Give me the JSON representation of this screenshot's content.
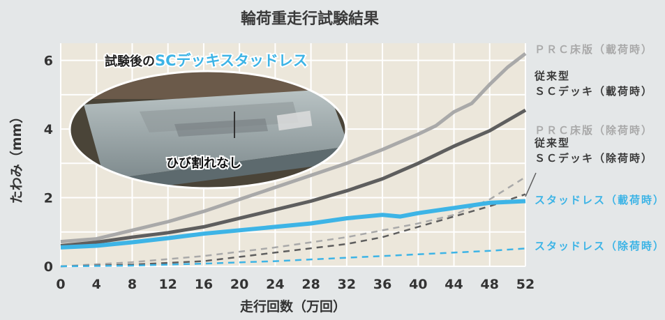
{
  "title": "輪荷重走行試験結果",
  "photo": {
    "caption_prefix": "試験後の",
    "caption_highlight": "SCデッキスタッドレス",
    "note": "ひび割れなし"
  },
  "colors": {
    "background": "#e4e7e8",
    "plot_bg": "#ece7db",
    "grid": "#ffffff",
    "prc": "#a9a9a9",
    "conventional": "#5e5e5e",
    "studless": "#3db4e6",
    "text": "#333333"
  },
  "chart_data": {
    "type": "line",
    "title": "輪荷重走行試験結果",
    "xlabel": "走行回数（万回）",
    "ylabel": "たわみ（mm）",
    "xlim": [
      0,
      52
    ],
    "ylim": [
      0,
      6.5
    ],
    "xticks": [
      "0",
      "4",
      "8",
      "12",
      "16",
      "20",
      "24",
      "28",
      "32",
      "36",
      "40",
      "44",
      "48",
      "52"
    ],
    "yticks": [
      "0",
      "2",
      "4",
      "6"
    ],
    "grid": true,
    "legend_placement": "right",
    "series": [
      {
        "name": "ＰＲＣ床版（載荷時）",
        "style": "solid",
        "color": "#a9a9a9",
        "x": [
          0,
          4,
          8,
          12,
          16,
          20,
          24,
          28,
          32,
          36,
          40,
          42,
          44,
          46,
          48,
          50,
          52
        ],
        "y": [
          0.72,
          0.8,
          1.05,
          1.3,
          1.6,
          1.95,
          2.3,
          2.65,
          3.0,
          3.4,
          3.85,
          4.1,
          4.5,
          4.75,
          5.3,
          5.8,
          6.2
        ]
      },
      {
        "name": "従来型 ＳＣデッキ（載荷時）",
        "style": "solid",
        "color": "#5e5e5e",
        "x": [
          0,
          4,
          8,
          12,
          16,
          20,
          24,
          28,
          32,
          36,
          40,
          44,
          48,
          52
        ],
        "y": [
          0.6,
          0.7,
          0.85,
          0.98,
          1.15,
          1.4,
          1.65,
          1.9,
          2.2,
          2.55,
          3.0,
          3.5,
          3.95,
          4.55
        ]
      },
      {
        "name": "ＰＲＣ床版（除荷時）",
        "style": "dashed",
        "color": "#a9a9a9",
        "x": [
          0,
          8,
          16,
          24,
          32,
          40,
          44,
          48,
          52
        ],
        "y": [
          0.0,
          0.12,
          0.3,
          0.55,
          0.85,
          1.25,
          1.5,
          1.95,
          2.6
        ]
      },
      {
        "name": "従来型 ＳＣデッキ（除荷時）",
        "style": "dashed",
        "color": "#5e5e5e",
        "x": [
          0,
          8,
          16,
          24,
          32,
          36,
          40,
          44,
          48,
          52
        ],
        "y": [
          0.0,
          0.05,
          0.15,
          0.4,
          0.65,
          0.85,
          1.15,
          1.45,
          1.75,
          2.1
        ]
      },
      {
        "name": "スタッドレス（載荷時）",
        "style": "solid",
        "color": "#3db4e6",
        "x": [
          0,
          4,
          8,
          12,
          16,
          20,
          24,
          28,
          32,
          36,
          38,
          40,
          44,
          48,
          52
        ],
        "y": [
          0.55,
          0.6,
          0.7,
          0.82,
          0.95,
          1.05,
          1.15,
          1.25,
          1.4,
          1.5,
          1.45,
          1.55,
          1.7,
          1.85,
          1.9
        ]
      },
      {
        "name": "スタッドレス（除荷時）",
        "style": "dashed",
        "color": "#3db4e6",
        "x": [
          0,
          8,
          16,
          24,
          32,
          40,
          48,
          52
        ],
        "y": [
          0.0,
          0.02,
          0.08,
          0.15,
          0.25,
          0.35,
          0.45,
          0.52
        ]
      }
    ],
    "legend": [
      {
        "lines": [
          "ＰＲＣ床版（載荷時）"
        ],
        "color": "#a9a9a9"
      },
      {
        "lines": [
          "従来型",
          "ＳＣデッキ（載荷時）"
        ],
        "color": "#3a3a3a"
      },
      {
        "lines": [
          "ＰＲＣ床版（除荷時）"
        ],
        "color": "#a9a9a9"
      },
      {
        "lines": [
          "従来型",
          "ＳＣデッキ（除荷時）"
        ],
        "color": "#3a3a3a"
      },
      {
        "lines": [
          "スタッドレス（載荷時）"
        ],
        "color": "#3db4e6"
      },
      {
        "lines": [
          "スタッドレス（除荷時）"
        ],
        "color": "#3db4e6"
      }
    ]
  }
}
